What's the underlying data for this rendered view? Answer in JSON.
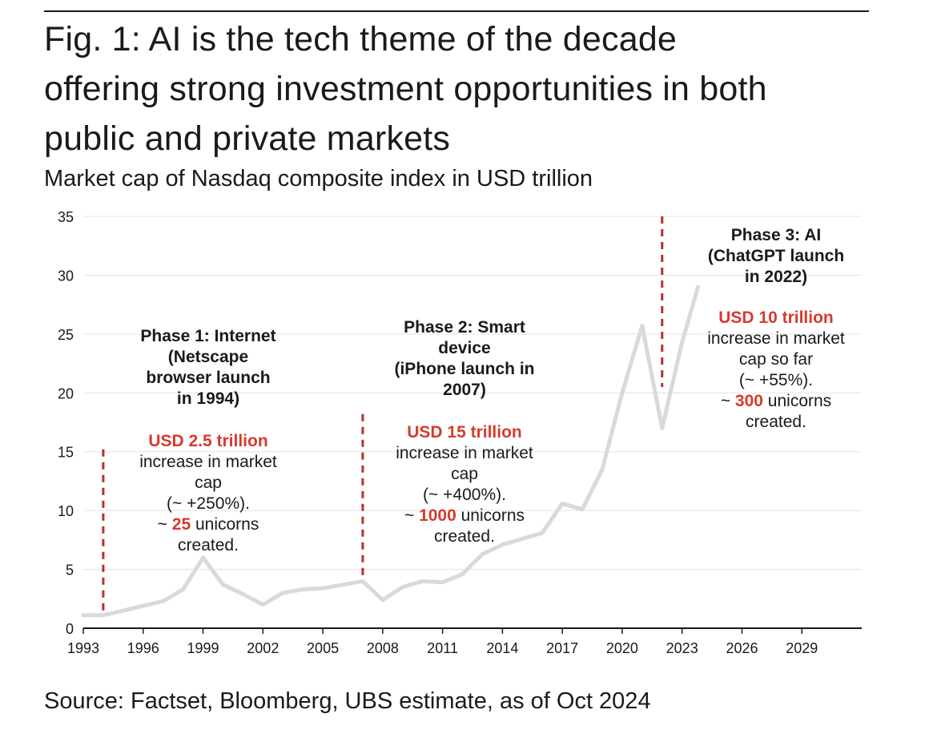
{
  "title_lines": [
    "Fig. 1: AI is the tech theme of the decade",
    "offering strong investment opportunities in both",
    "public and private markets"
  ],
  "subtitle": "Market cap of Nasdaq composite index in USD trillion",
  "source": "Source: Factset, Bloomberg, UBS estimate, as of Oct 2024",
  "colors": {
    "line": "#d9d9d9",
    "grid": "#e3e3e3",
    "axis": "#1a1a1a",
    "phase_marker": "#b5312b",
    "highlight": "#d63a2f"
  },
  "chart_data": {
    "type": "line",
    "x": [
      1993,
      1994,
      1995,
      1996,
      1997,
      1998,
      1999,
      2000,
      2001,
      2002,
      2003,
      2004,
      2005,
      2006,
      2007,
      2008,
      2009,
      2010,
      2011,
      2012,
      2013,
      2014,
      2015,
      2016,
      2017,
      2018,
      2019,
      2020,
      2021,
      2022,
      2023,
      2023.8
    ],
    "series": [
      {
        "values": [
          1.1,
          1.1,
          1.5,
          1.9,
          2.3,
          3.3,
          6.0,
          3.7,
          2.9,
          2.0,
          3.0,
          3.3,
          3.4,
          3.7,
          4.0,
          2.4,
          3.5,
          4.0,
          3.9,
          4.6,
          6.3,
          7.1,
          7.6,
          8.1,
          10.6,
          10.1,
          13.5,
          20.0,
          25.7,
          17.0,
          24.3,
          29.0
        ]
      }
    ],
    "xlim": [
      1993,
      2032
    ],
    "ylim": [
      0,
      35
    ],
    "xticks": [
      1993,
      1996,
      1999,
      2002,
      2005,
      2008,
      2011,
      2014,
      2017,
      2020,
      2023,
      2026,
      2029
    ],
    "xtick_labels": [
      "1993",
      "1996",
      "1999",
      "2002",
      "2005",
      "2008",
      "2011",
      "2014",
      "2017",
      "2020",
      "2023",
      "2026",
      "2029"
    ],
    "yticks": [
      0,
      5,
      10,
      15,
      20,
      25,
      30,
      35
    ],
    "ytick_labels": [
      "0",
      "5",
      "10",
      "15",
      "20",
      "25",
      "30",
      "35"
    ],
    "grid": true,
    "phase_markers": [
      {
        "x": 1994,
        "y_from": 1,
        "y_to": 15.2
      },
      {
        "x": 2007,
        "y_from": 4,
        "y_to": 18.2
      },
      {
        "x": 2022,
        "y_from": 20.5,
        "y_to": 35
      }
    ]
  },
  "annotations": {
    "phase1": {
      "heading": [
        "Phase 1: Internet",
        "(Netscape",
        "browser launch",
        "in 1994)"
      ],
      "highlight": "USD 2.5 trillion",
      "lines": [
        "increase in market",
        "cap",
        "(~ +250%)."
      ],
      "unicorn_prefix": "~ ",
      "unicorn_count": "25",
      "unicorn_suffix": " unicorns",
      "last": "created."
    },
    "phase2": {
      "heading": [
        "Phase 2: Smart",
        "device",
        "(iPhone launch in",
        "2007)"
      ],
      "highlight": "USD 15 trillion",
      "lines": [
        "increase in market",
        "cap",
        "(~ +400%)."
      ],
      "unicorn_prefix": "~ ",
      "unicorn_count": "1000",
      "unicorn_suffix": " unicorns",
      "last": "created."
    },
    "phase3": {
      "heading": [
        "Phase 3: AI",
        "(ChatGPT launch",
        "in 2022)"
      ],
      "highlight": "USD 10 trillion",
      "lines": [
        "increase in market",
        "cap so far",
        "(~  +55%)."
      ],
      "unicorn_prefix": "~ ",
      "unicorn_count": "300",
      "unicorn_suffix": " unicorns",
      "last": "created."
    }
  }
}
